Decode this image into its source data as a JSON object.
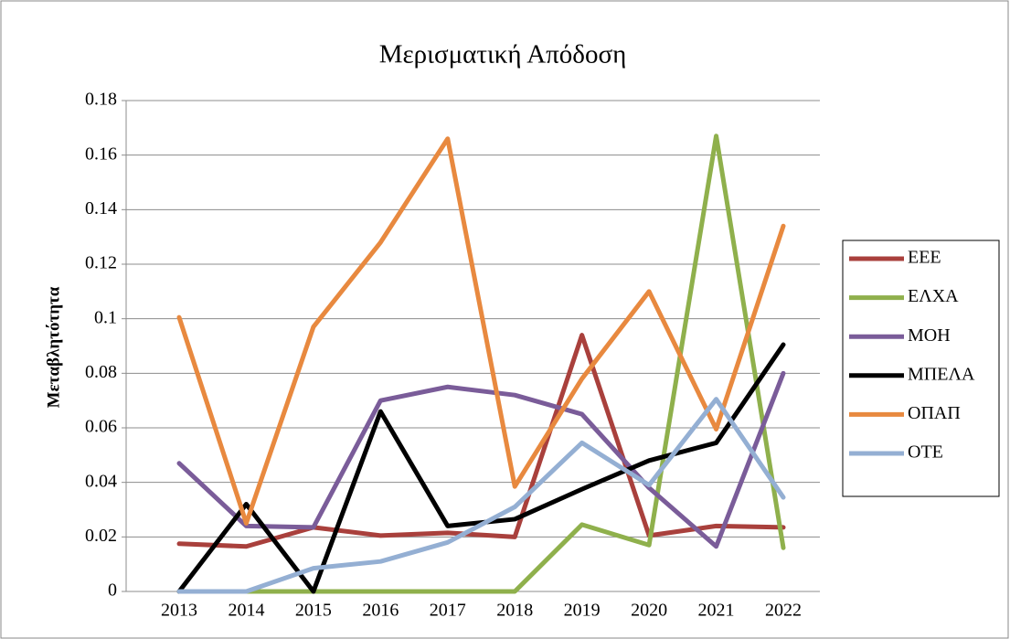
{
  "chart_data": {
    "type": "line",
    "title": "Μερισματική Απόδοση",
    "y_label": "Μεταβλητότητα",
    "categories": [
      "2013",
      "2014",
      "2015",
      "2016",
      "2017",
      "2018",
      "2019",
      "2020",
      "2021",
      "2022"
    ],
    "ylim": [
      0,
      0.18
    ],
    "yticks": [
      0,
      0.02,
      0.04,
      0.06,
      0.08,
      0.1,
      0.12,
      0.14,
      0.16,
      0.18
    ],
    "grid": true,
    "legend": "right",
    "series": [
      {
        "name": "ΕΕΕ",
        "color": "#a9403c",
        "values": [
          0.0175,
          0.0165,
          0.0235,
          0.0205,
          0.0215,
          0.02,
          0.094,
          0.0205,
          0.024,
          0.0235
        ]
      },
      {
        "name": "ΕΛΧΑ",
        "color": "#8fb04c",
        "values": [
          0,
          0,
          0,
          0,
          0,
          0,
          0.0245,
          0.017,
          0.167,
          0.016
        ]
      },
      {
        "name": "ΜΟΗ",
        "color": "#7a5c99",
        "values": [
          0.047,
          0.024,
          0.0235,
          0.07,
          0.075,
          0.072,
          0.065,
          0.038,
          0.0165,
          0.08
        ]
      },
      {
        "name": "ΜΠΕΛΑ",
        "color": "#000000",
        "values": [
          0,
          0.032,
          0,
          0.066,
          0.024,
          0.0265,
          0.0375,
          0.048,
          0.0545,
          0.0905
        ]
      },
      {
        "name": "ΟΠΑΠ",
        "color": "#e8893f",
        "values": [
          0.1005,
          0.025,
          0.097,
          0.128,
          0.166,
          0.0385,
          0.078,
          0.11,
          0.0595,
          0.134
        ]
      },
      {
        "name": "ΟΤΕ",
        "color": "#94afd3",
        "values": [
          0,
          0,
          0.0085,
          0.011,
          0.018,
          0.031,
          0.0545,
          0.039,
          0.0705,
          0.0345
        ]
      }
    ]
  }
}
